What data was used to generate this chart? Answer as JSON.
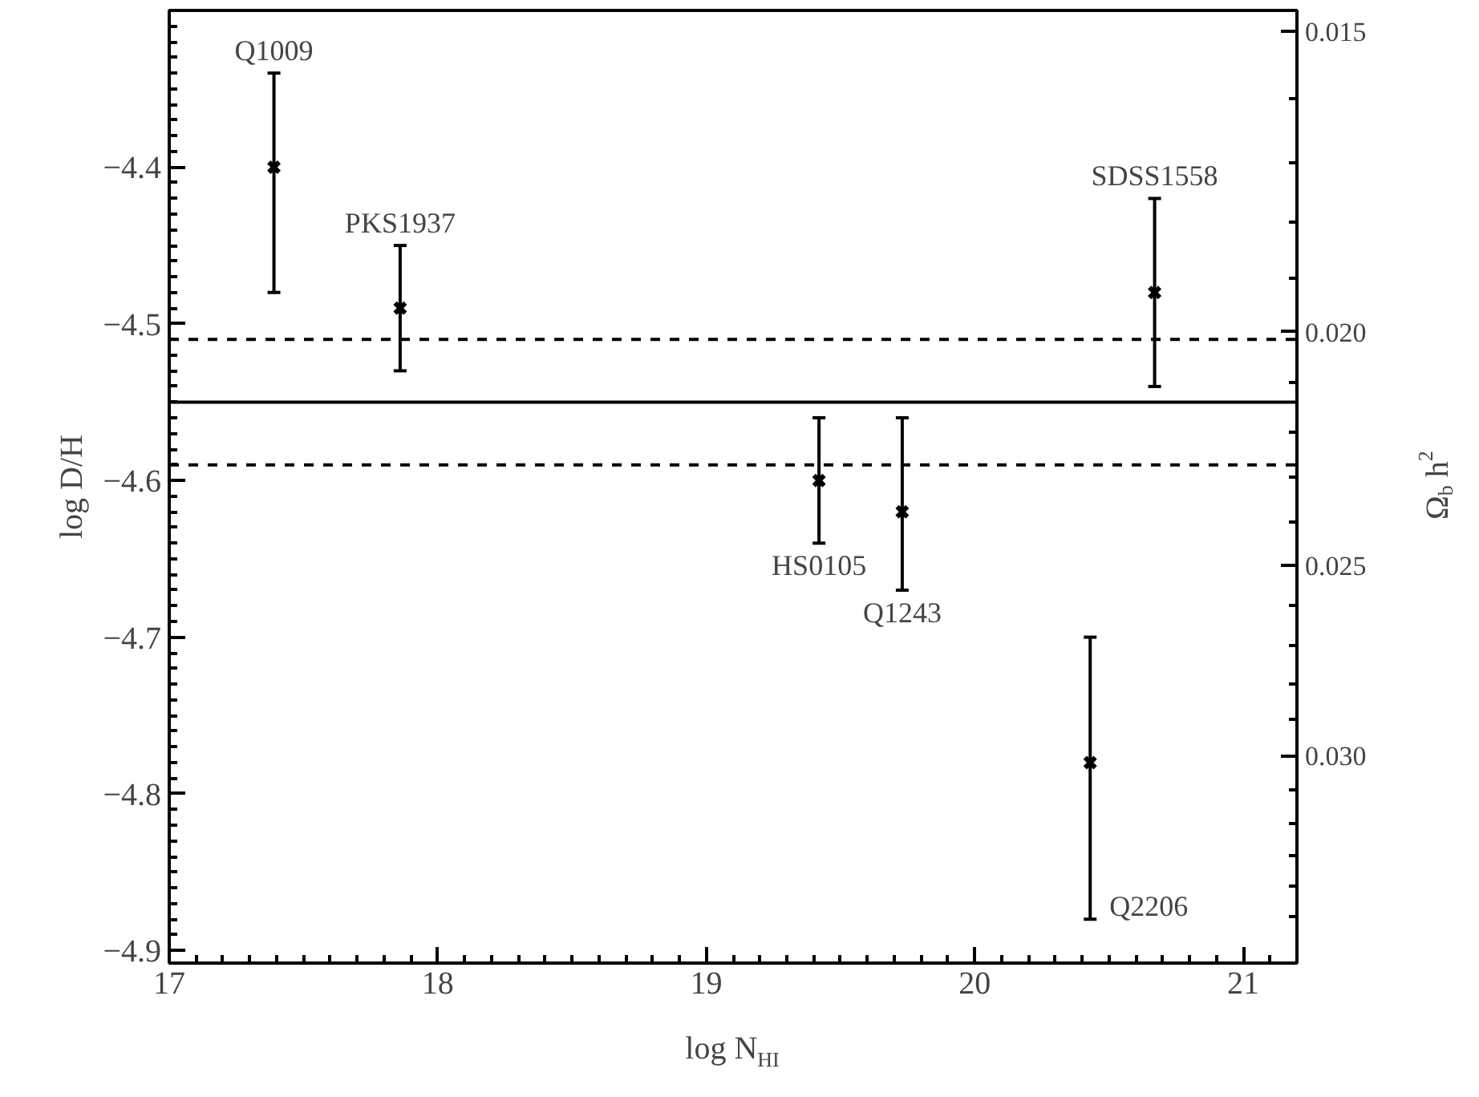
{
  "chart_data": {
    "type": "scatter",
    "xlabel": "log N$_{HI}$",
    "ylabel": "log D/H",
    "y2label": "Ω$_{b}$ h$^{2}$",
    "x": [
      17.39,
      17.86,
      19.42,
      19.73,
      20.67,
      20.43
    ],
    "values": [
      -4.4,
      -4.49,
      -4.6,
      -4.62,
      -4.48,
      -4.78
    ],
    "errors": [
      [
        -4.48,
        -4.34
      ],
      [
        -4.53,
        -4.45
      ],
      [
        -4.64,
        -4.56
      ],
      [
        -4.67,
        -4.56
      ],
      [
        -4.54,
        -4.42
      ],
      [
        -4.88,
        -4.7
      ]
    ],
    "color": "#000000",
    "marker": "cross",
    "grid": false,
    "log": "y2",
    "xlim": [
      17,
      21.2
    ],
    "ylim": [
      -4.908,
      -4.3
    ],
    "xticks": [
      17,
      18,
      19,
      20,
      21
    ],
    "yticks": [
      {
        "value": -4.4,
        "label": "−4.4"
      },
      {
        "value": -4.5,
        "label": "−4.5"
      },
      {
        "value": -4.6,
        "label": "−4.6"
      },
      {
        "value": -4.7,
        "label": "−4.7"
      },
      {
        "value": -4.8,
        "label": "−4.8"
      },
      {
        "value": -4.9,
        "label": "−4.9"
      }
    ],
    "y2lim": [
      0.0366,
      0.0147
    ],
    "y2ticks": [
      {
        "value": 0.015,
        "label": "0.015"
      },
      {
        "value": 0.02,
        "label": "0.020"
      },
      {
        "value": 0.025,
        "label": "0.025"
      },
      {
        "value": 0.03,
        "label": "0.030"
      }
    ],
    "ref_lines": [
      {
        "axis": "y",
        "value": -4.55,
        "line_style": "solid"
      },
      {
        "axis": "y",
        "value": -4.51,
        "line_style": "dashed"
      },
      {
        "axis": "y",
        "value": -4.59,
        "line_style": "dashed"
      }
    ],
    "annotations": [
      {
        "text": "Q1009",
        "x": 17.39,
        "y": -4.34
      },
      {
        "text": "PKS1937",
        "x": 17.86,
        "y": -4.45
      },
      {
        "text": "HS0105",
        "x": 19.42,
        "y": -4.64
      },
      {
        "text": "Q1243",
        "x": 19.73,
        "y": -4.67
      },
      {
        "text": "SDSS1558",
        "x": 20.67,
        "y": -4.42
      },
      {
        "text": "Q2206",
        "x": 20.43,
        "y": -4.88
      }
    ]
  }
}
